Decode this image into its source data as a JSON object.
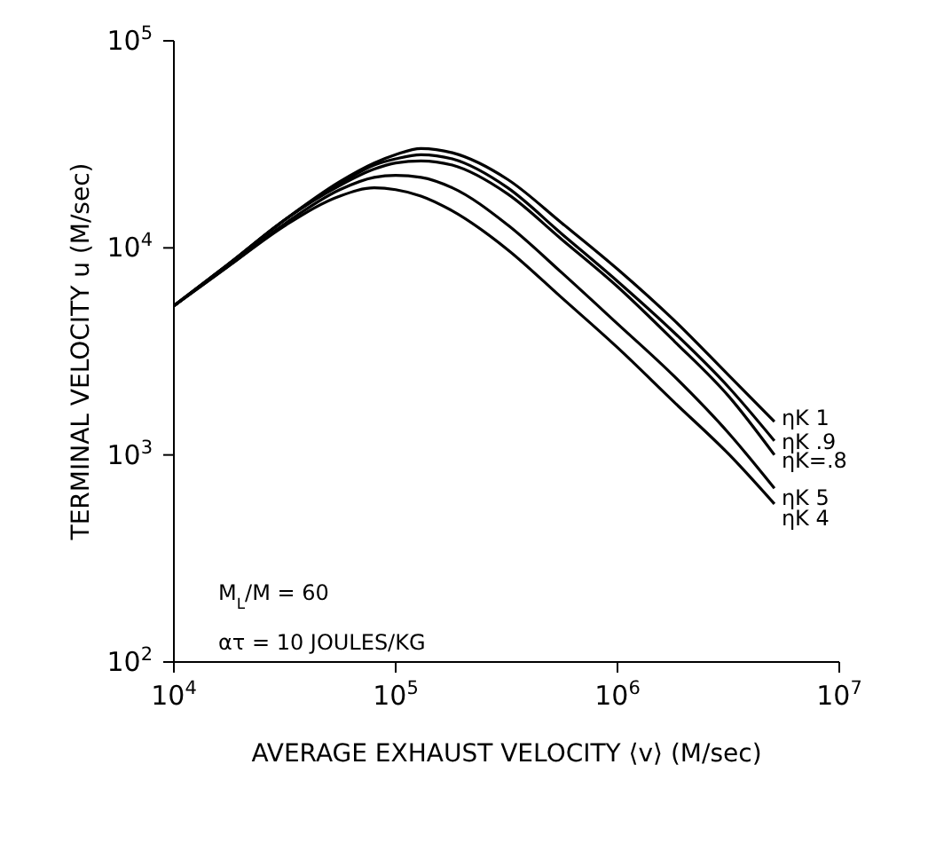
{
  "chart_data": {
    "type": "line",
    "xlabel": "AVERAGE EXHAUST VELOCITY ⟨v⟩ (M/sec)",
    "ylabel": "TERMINAL VELOCITY u (M/sec)",
    "log": "xy",
    "marker": "none",
    "line_style": "solid",
    "xlim": [
      10000,
      10000000
    ],
    "xticks": [
      {
        "value": 10000,
        "label": "10$^{4}$"
      },
      {
        "value": 100000,
        "label": "10$^{5}$"
      },
      {
        "value": 1000000,
        "label": "10$^{6}$"
      },
      {
        "value": 10000000,
        "label": "10$^{7}$"
      }
    ],
    "ylim": [
      100,
      100000
    ],
    "yticks": [
      {
        "value": 100,
        "label": "10$^{2}$"
      },
      {
        "value": 1000,
        "label": "10$^{3}$"
      },
      {
        "value": 10000,
        "label": "10$^{4}$"
      },
      {
        "value": 100000,
        "label": "10$^{5}$"
      }
    ],
    "x": [
      10000,
      18000,
      32000,
      56000,
      80000,
      100000,
      130000,
      180000,
      320000,
      560000,
      1000000,
      1800000,
      3200000,
      5100000
    ],
    "series": [
      {
        "name": "ηK 1",
        "color": "#000000",
        "values": [
          5250,
          8500,
          13800,
          20900,
          25700,
          28200,
          30200,
          28800,
          21400,
          13200,
          7900,
          4470,
          2400,
          1450
        ]
      },
      {
        "name": "ηK .9",
        "color": "#000000",
        "values": [
          5250,
          8500,
          13800,
          20400,
          25100,
          26900,
          28200,
          26900,
          19500,
          11700,
          6900,
          3900,
          2100,
          1170
        ]
      },
      {
        "name": "ηK=.8",
        "color": "#000000",
        "values": [
          5250,
          8500,
          13800,
          20000,
          24000,
          25700,
          26300,
          25100,
          18200,
          11000,
          6500,
          3550,
          1900,
          1000
        ]
      },
      {
        "name": "ηK 5",
        "color": "#000000",
        "values": [
          5250,
          8300,
          13200,
          19100,
          21900,
          22400,
          21900,
          19500,
          12900,
          7600,
          4300,
          2400,
          1260,
          690
        ]
      },
      {
        "name": "ηK 4",
        "color": "#000000",
        "values": [
          5250,
          8300,
          12900,
          17800,
          19500,
          19100,
          17800,
          15100,
          9800,
          5750,
          3300,
          1800,
          1000,
          580
        ]
      }
    ],
    "annotations": [
      "M$_{L}$/M = 60",
      "ατ = 10 JOULES/KG"
    ]
  }
}
